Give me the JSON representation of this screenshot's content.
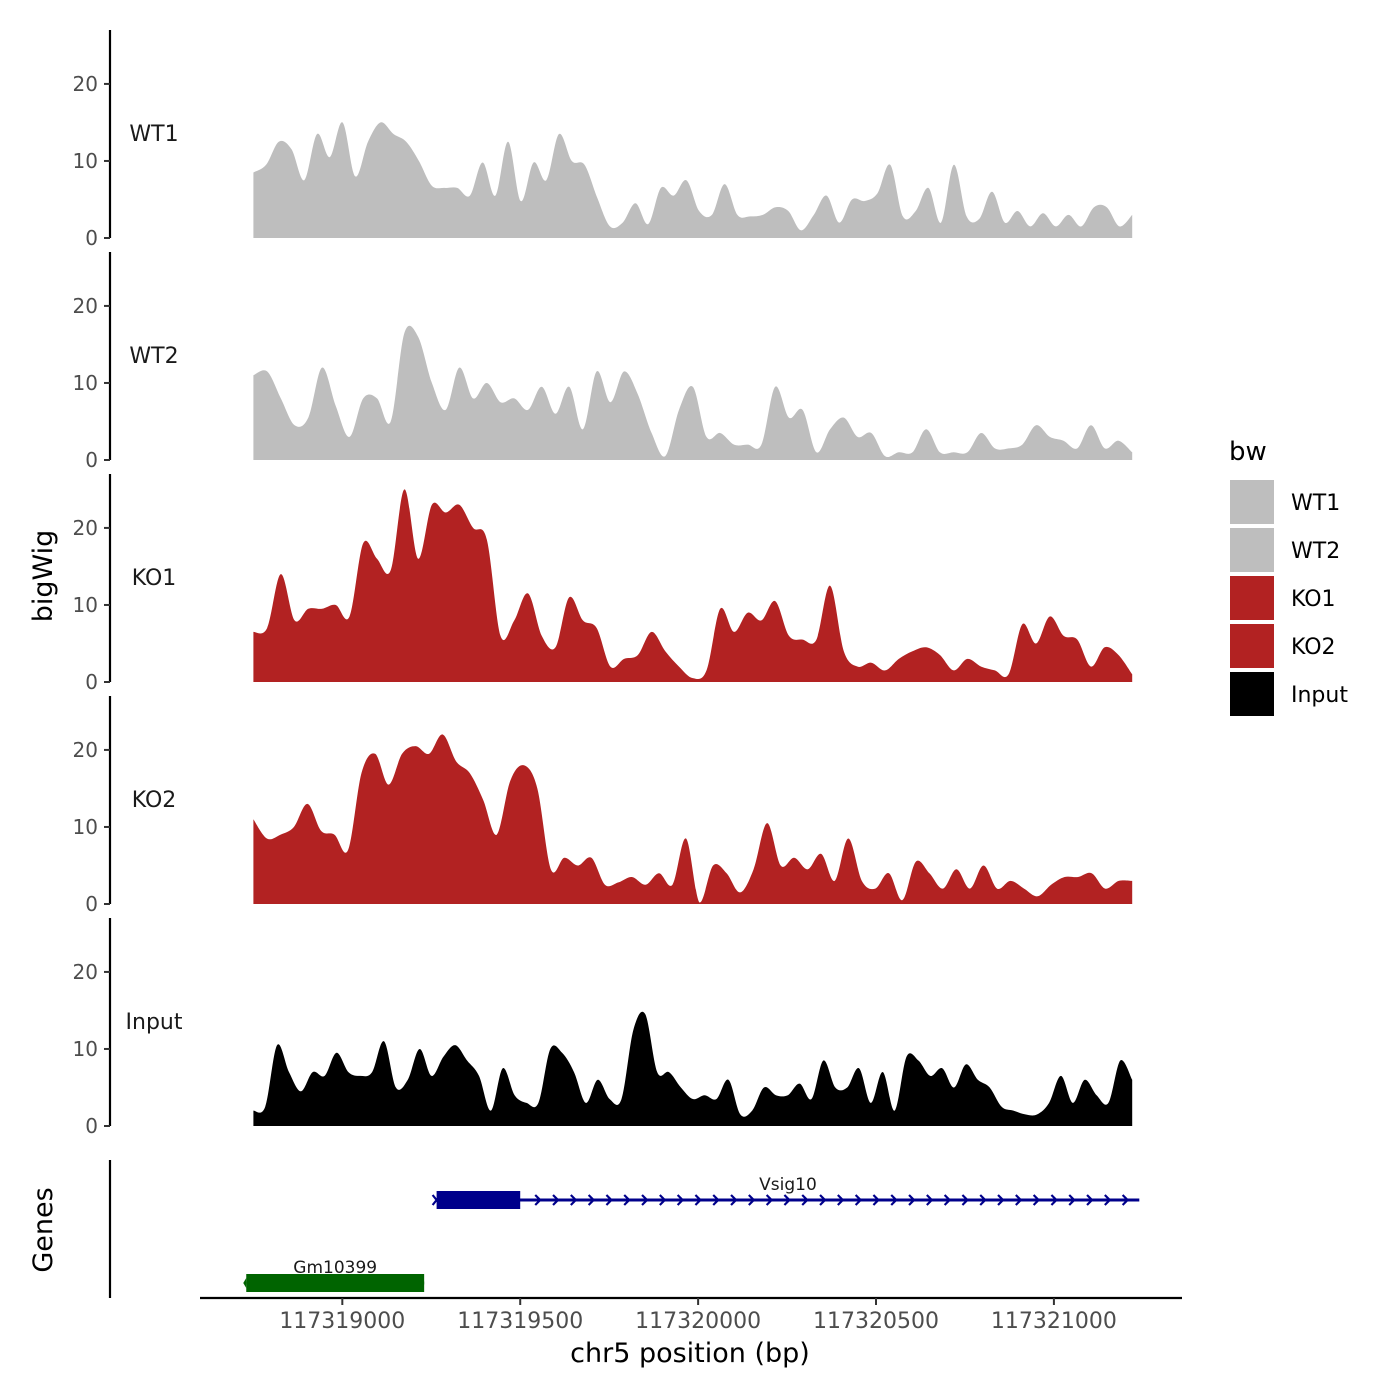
{
  "chart_data": {
    "type": "area",
    "xlabel": "chr5 position (bp)",
    "ylabel": "bigWig",
    "genes_ylabel": "Genes",
    "xlim": [
      117318600,
      117321360
    ],
    "x_ticks": [
      117319000,
      117319500,
      117320000,
      117320500,
      117321000
    ],
    "x_tick_labels": [
      "117319000",
      "117319500",
      "117320000",
      "117320500",
      "117321000"
    ],
    "ylim": [
      0,
      27
    ],
    "y_ticks": [
      0,
      10,
      20
    ],
    "y_tick_labels": [
      "0",
      "10",
      "20"
    ],
    "x_start": 117318750,
    "x_end": 117321220,
    "series": [
      {
        "name": "WT1",
        "color": "#BEBEBE",
        "values": [
          8.5,
          9.5,
          12.5,
          11.5,
          7.5,
          13.5,
          10.5,
          15,
          8,
          12.5,
          15,
          13.5,
          12.5,
          10,
          6.8,
          6.5,
          6.5,
          5.5,
          9.8,
          5.5,
          12.5,
          4.8,
          9.8,
          7.5,
          13.5,
          10,
          9.5,
          5.2,
          1.5,
          2,
          4.5,
          1.8,
          6.5,
          5.5,
          7.5,
          3.5,
          3,
          7,
          3,
          2.8,
          3,
          4,
          3.5,
          1,
          3,
          5.5,
          2,
          5,
          4.8,
          5.8,
          9.5,
          2.8,
          3.5,
          6.5,
          2,
          9.5,
          2.8,
          2.5,
          6,
          2,
          3.5,
          1.5,
          3.2,
          1.5,
          3,
          1.5,
          4,
          4,
          1.5,
          3
        ]
      },
      {
        "name": "WT2",
        "color": "#BEBEBE",
        "values": [
          11,
          11.5,
          8,
          4.5,
          5.5,
          12,
          7,
          3,
          8,
          8,
          5,
          16.5,
          16,
          10,
          6.5,
          12,
          8,
          10,
          7.5,
          8,
          6.5,
          9.5,
          6,
          9.5,
          4,
          11.5,
          7.5,
          11.5,
          8.5,
          3.5,
          0.5,
          6.5,
          9.5,
          3,
          3.5,
          2,
          2,
          2,
          9.5,
          5.5,
          6.5,
          1,
          4,
          5.5,
          3,
          3.5,
          0.5,
          1,
          1,
          4,
          1,
          1,
          1,
          3.5,
          1.5,
          1.5,
          2,
          4.5,
          3,
          2.5,
          1.5,
          4.5,
          1.5,
          2.5,
          1
        ]
      },
      {
        "name": "KO1",
        "color": "#B22222",
        "values": [
          6.5,
          7,
          14,
          8,
          9.5,
          9.5,
          10,
          8.5,
          18,
          16,
          14.5,
          25,
          16,
          23,
          22,
          23,
          20,
          18.5,
          6,
          8,
          11.5,
          6,
          4.5,
          11,
          8,
          7,
          2,
          3,
          3.5,
          6.5,
          4,
          2,
          0.5,
          1.5,
          9.5,
          6.5,
          9,
          8,
          10.5,
          6,
          5.5,
          5.5,
          12.5,
          4,
          2,
          2.5,
          1.5,
          3,
          4,
          4.5,
          3.5,
          1.5,
          3,
          2,
          1.5,
          1,
          7.5,
          5,
          8.5,
          6,
          5.5,
          2,
          4.5,
          3.5,
          1
        ]
      },
      {
        "name": "KO2",
        "color": "#B22222",
        "values": [
          11,
          8.5,
          9,
          10,
          13,
          9.5,
          9,
          7,
          17,
          19.5,
          15.5,
          19.5,
          20.5,
          19.5,
          22,
          18.5,
          17,
          13.5,
          9,
          16,
          18,
          15,
          4.5,
          6,
          5,
          6,
          2.5,
          2.8,
          3.5,
          2.5,
          4,
          2.5,
          8.5,
          0.2,
          5,
          4,
          1.5,
          4.5,
          10.5,
          5,
          6,
          4.5,
          6.5,
          3,
          8.5,
          3,
          2,
          4,
          0.5,
          5.5,
          4,
          2,
          4.5,
          2,
          5,
          2,
          3,
          2,
          1,
          2.5,
          3.5,
          3.5,
          4,
          2,
          3,
          3
        ]
      },
      {
        "name": "Input",
        "color": "#000000",
        "values": [
          2,
          2.5,
          10.5,
          7,
          4.5,
          7,
          6.5,
          9.5,
          7,
          6.5,
          7,
          11,
          5,
          6,
          10,
          6.5,
          9,
          10.5,
          8.5,
          6.5,
          2,
          7.5,
          4,
          3,
          3,
          10,
          9.5,
          7,
          3,
          6,
          3.5,
          3.5,
          12.5,
          14.5,
          7,
          7,
          5,
          3.5,
          4,
          3.5,
          6,
          1.5,
          2,
          5,
          4,
          4,
          5.5,
          3.5,
          8.5,
          5,
          5,
          7.5,
          3,
          7,
          2,
          9,
          8.5,
          6.5,
          7.5,
          5,
          8,
          6,
          5,
          2.5,
          2,
          1.5,
          1.5,
          3,
          6.5,
          3,
          6,
          4,
          3,
          8.5,
          6
        ]
      }
    ],
    "tracks": [
      {
        "label": "WT1",
        "series": "WT1"
      },
      {
        "label": "WT2",
        "series": "WT2"
      },
      {
        "label": "KO1",
        "series": "KO1"
      },
      {
        "label": "KO2",
        "series": "KO2"
      },
      {
        "label": "Input",
        "series": "Input"
      }
    ],
    "genes": [
      {
        "name": "Vsig10",
        "start": 117319265,
        "end": 117321240,
        "strand": "+",
        "color": "#00008B",
        "thick_start": 117319265,
        "thick_end": 117319500,
        "row": 1
      },
      {
        "name": "Gm10399",
        "start": 117318730,
        "end": 117319230,
        "strand": "",
        "color": "#006400",
        "thick_start": 117318730,
        "thick_end": 117319230,
        "row": 2
      }
    ],
    "legend": {
      "title": "bw",
      "position": "right",
      "entries": [
        {
          "label": "WT1",
          "color": "#BEBEBE"
        },
        {
          "label": "WT2",
          "color": "#BEBEBE"
        },
        {
          "label": "KO1",
          "color": "#B22222"
        },
        {
          "label": "KO2",
          "color": "#B22222"
        },
        {
          "label": "Input",
          "color": "#000000"
        }
      ]
    }
  }
}
